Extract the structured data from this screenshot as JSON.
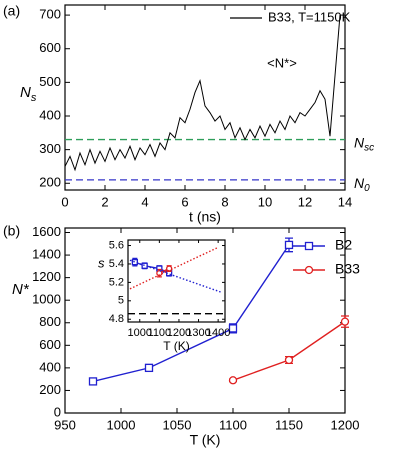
{
  "chart_data": [
    {
      "type": "line",
      "panel_label": "(a)",
      "x_label": "t (ns)",
      "y_label": "N",
      "y_label_sub": "s",
      "xlim": [
        0,
        14
      ],
      "ylim": [
        180,
        730
      ],
      "xticks": [
        0,
        2,
        4,
        6,
        8,
        10,
        12,
        14
      ],
      "yticks": [
        200,
        300,
        400,
        500,
        600,
        700
      ],
      "annotation": "<N*>",
      "series": [
        {
          "name": "B33, T=1150K",
          "color": "#000000",
          "x": [
            0,
            0.25,
            0.5,
            0.75,
            1,
            1.25,
            1.5,
            1.75,
            2,
            2.25,
            2.5,
            2.75,
            3,
            3.25,
            3.5,
            3.75,
            4,
            4.25,
            4.5,
            4.75,
            5,
            5.25,
            5.5,
            5.75,
            6,
            6.25,
            6.5,
            6.75,
            7,
            7.25,
            7.5,
            7.75,
            8,
            8.25,
            8.5,
            8.75,
            9,
            9.25,
            9.5,
            9.75,
            10,
            10.25,
            10.5,
            10.75,
            11,
            11.25,
            11.5,
            11.75,
            12,
            12.25,
            12.5,
            12.75,
            13,
            13.25,
            13.5,
            13.75
          ],
          "values": [
            250,
            280,
            240,
            290,
            255,
            300,
            260,
            295,
            265,
            305,
            270,
            300,
            275,
            310,
            270,
            305,
            285,
            315,
            280,
            320,
            300,
            350,
            335,
            395,
            380,
            420,
            470,
            505,
            430,
            410,
            385,
            400,
            360,
            380,
            335,
            365,
            330,
            360,
            335,
            370,
            340,
            375,
            350,
            385,
            360,
            400,
            380,
            410,
            400,
            420,
            440,
            475,
            450,
            340,
            520,
            700
          ]
        }
      ],
      "hlines": [
        {
          "value": 330,
          "color": "#2e9e5a",
          "label": "N",
          "label_sub": "sc"
        },
        {
          "value": 210,
          "color": "#3535c8",
          "label": "N",
          "label_sub": "0"
        }
      ]
    },
    {
      "type": "line",
      "panel_label": "(b)",
      "x_label": "T (K)",
      "y_label": "N*",
      "xlim": [
        950,
        1200
      ],
      "ylim": [
        0,
        1640
      ],
      "xticks": [
        950,
        1000,
        1050,
        1100,
        1150,
        1200
      ],
      "yticks": [
        0,
        200,
        400,
        600,
        800,
        1000,
        1200,
        1400,
        1600
      ],
      "series": [
        {
          "name": "B2",
          "color": "#2020d0",
          "marker": "square",
          "x": [
            975,
            1025,
            1100,
            1150
          ],
          "values": [
            280,
            400,
            750,
            1490
          ],
          "errors": [
            20,
            30,
            40,
            60
          ]
        },
        {
          "name": "B33",
          "color": "#e02020",
          "marker": "circle",
          "x": [
            1100,
            1150,
            1200
          ],
          "values": [
            290,
            470,
            810
          ],
          "errors": [
            10,
            30,
            50
          ]
        }
      ]
    },
    {
      "type": "line",
      "x_label": "T (K)",
      "y_label": "s",
      "xlim": [
        940,
        1435
      ],
      "ylim": [
        4.77,
        5.66
      ],
      "xticks": [
        1000,
        1100,
        1200,
        1300,
        1400
      ],
      "yticks": [
        4.8,
        5,
        5.2,
        5.4,
        5.6
      ],
      "hlines": [
        {
          "value": 4.86,
          "color": "#000000"
        }
      ],
      "series": [
        {
          "color": "#2020d0",
          "marker": "square",
          "x": [
            975,
            1025,
            1100,
            1150
          ],
          "values": [
            5.42,
            5.38,
            5.35,
            5.3
          ],
          "errors": [
            0.04,
            0.03,
            0.03,
            0.03
          ]
        },
        {
          "color": "#e02020",
          "marker": "circle",
          "x": [
            1100,
            1150
          ],
          "values": [
            5.3,
            5.35
          ],
          "errors": [
            0.04,
            0.03
          ]
        },
        {
          "color": "#2020d0",
          "dash": "dotted",
          "x": [
            950,
            1420
          ],
          "values": [
            5.44,
            5.09
          ]
        },
        {
          "color": "#e02020",
          "dash": "dotted",
          "x": [
            950,
            1400
          ],
          "values": [
            5.13,
            5.58
          ]
        }
      ]
    }
  ]
}
